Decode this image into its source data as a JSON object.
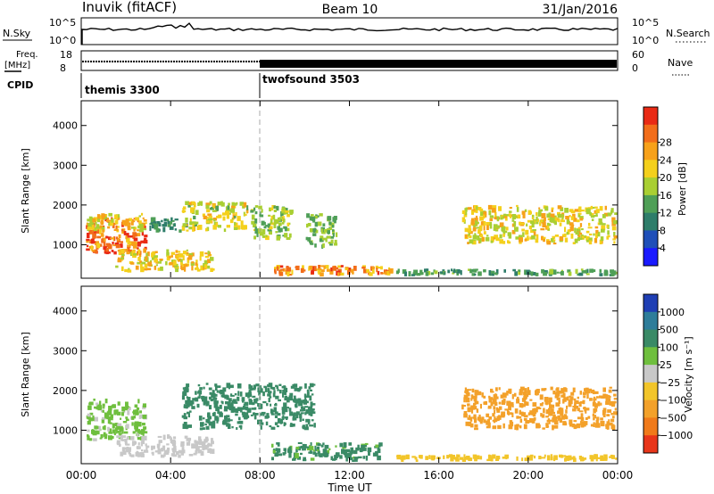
{
  "header": {
    "station": "Inuvik (fitACF)",
    "beam": "Beam 10",
    "date": "31/Jan/2016"
  },
  "top_panels": {
    "nsky": {
      "label": "N.Sky",
      "ticks": [
        "10^5",
        "10^0"
      ]
    },
    "nsearch": {
      "label": "N.Search",
      "ticks": [
        "10^5",
        "10^0"
      ]
    },
    "freq": {
      "label_line1": "Freq.",
      "label_line2": "[MHz]",
      "ticks": [
        "18",
        "8"
      ]
    },
    "nave": {
      "label": "Nave",
      "ticks": [
        "60",
        "0"
      ]
    },
    "cpid": {
      "label": "CPID",
      "modes": [
        {
          "name": "themis 3300",
          "start_hour": 0
        },
        {
          "name": "twofsound 3503",
          "start_hour": 8
        }
      ]
    }
  },
  "axes": {
    "x_ticks": [
      "00:00",
      "04:00",
      "08:00",
      "12:00",
      "16:00",
      "20:00",
      "00:00"
    ],
    "xlabel": "Time UT",
    "ylabel": "Slant Range [km]",
    "y_ticks": [
      "1000",
      "2000",
      "3000",
      "4000"
    ]
  },
  "colorbars": {
    "power": {
      "title": "Power [dB]",
      "ticks": [
        "4",
        "8",
        "12",
        "16",
        "20",
        "24",
        "28"
      ],
      "colors": [
        "#1a1aff",
        "#1f4fb8",
        "#2e7d6a",
        "#4f9f57",
        "#a9cf33",
        "#f4d01c",
        "#f7a11a",
        "#f26d1a",
        "#e92a15"
      ]
    },
    "velocity": {
      "title": "Velocity [m s⁻¹]",
      "ticks": [
        "1000",
        "500",
        "100",
        "25",
        "−25",
        "−100",
        "−500",
        "−1000"
      ],
      "colors": [
        "#1f3fb4",
        "#2e7d9a",
        "#3a8a66",
        "#6fbf3e",
        "#c8c8c8",
        "#f2c52a",
        "#f3a12a",
        "#f07a1a",
        "#e8361a"
      ]
    }
  },
  "chart_data": {
    "type": "heatmap",
    "x_unit": "hours UT",
    "xlim": [
      0,
      24
    ],
    "ylim": [
      180,
      4600
    ],
    "power_regions": [
      {
        "t0": 0.2,
        "t1": 3.0,
        "r0": 700,
        "r1": 1700,
        "value_db": 27
      },
      {
        "t0": 0.2,
        "t1": 3.0,
        "r0": 1300,
        "r1": 1800,
        "value_db": 20
      },
      {
        "t0": 3.0,
        "t1": 4.8,
        "r0": 1300,
        "r1": 1700,
        "value_db": 10
      },
      {
        "t0": 4.5,
        "t1": 7.5,
        "r0": 1300,
        "r1": 2100,
        "value_db": 18
      },
      {
        "t0": 7.5,
        "t1": 9.5,
        "r0": 1100,
        "r1": 2000,
        "value_db": 15
      },
      {
        "t0": 10.0,
        "t1": 11.5,
        "r0": 900,
        "r1": 1800,
        "value_db": 14
      },
      {
        "t0": 8.5,
        "t1": 14.0,
        "r0": 200,
        "r1": 500,
        "value_db": 24
      },
      {
        "t0": 14.0,
        "t1": 24.0,
        "r0": 200,
        "r1": 400,
        "value_db": 12
      },
      {
        "t0": 17.0,
        "t1": 24.0,
        "r0": 1000,
        "r1": 2000,
        "value_db": 19
      },
      {
        "t0": 1.5,
        "t1": 6.0,
        "r0": 300,
        "r1": 900,
        "value_db": 20
      }
    ],
    "velocity_regions": [
      {
        "t0": 0.2,
        "t1": 3.0,
        "r0": 700,
        "r1": 1800,
        "value_ms": 30
      },
      {
        "t0": 4.5,
        "t1": 10.5,
        "r0": 1000,
        "r1": 2200,
        "value_ms": 150
      },
      {
        "t0": 8.5,
        "t1": 13.5,
        "r0": 200,
        "r1": 700,
        "value_ms": 120
      },
      {
        "t0": 17.0,
        "t1": 24.0,
        "r0": 1000,
        "r1": 2100,
        "value_ms": -400
      },
      {
        "t0": 14.0,
        "t1": 24.0,
        "r0": 200,
        "r1": 400,
        "value_ms": -80
      },
      {
        "t0": 1.5,
        "t1": 6.0,
        "r0": 300,
        "r1": 900,
        "value_ms": 20
      }
    ]
  }
}
